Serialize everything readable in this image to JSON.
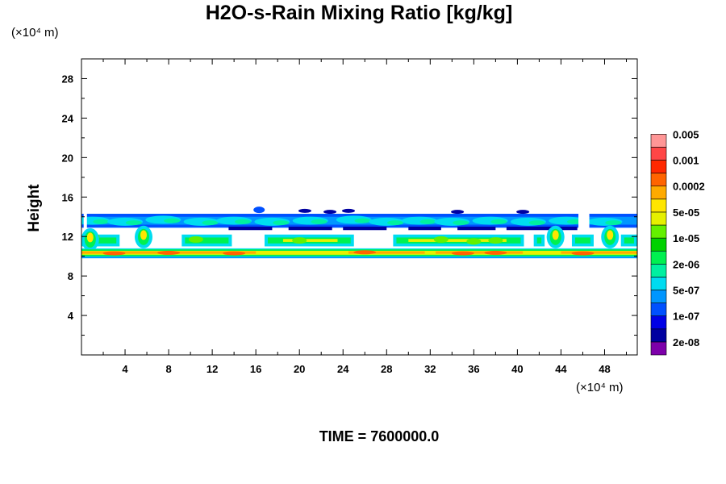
{
  "chart_data": {
    "type": "heatmap",
    "subtype": "filled-contour",
    "title": "H2O-s-Rain Mixing Ratio [kg/kg]",
    "xlabel": "",
    "ylabel": "Height",
    "x_unit": "(×10⁴ m)",
    "y_unit": "(×10⁴ m)",
    "xlim": [
      0,
      51
    ],
    "ylim": [
      0,
      30
    ],
    "x_ticks": [
      4,
      8,
      12,
      16,
      20,
      24,
      28,
      32,
      36,
      40,
      44,
      48
    ],
    "y_ticks": [
      4,
      8,
      12,
      16,
      20,
      24,
      28
    ],
    "time_label": "TIME = 7600000.0",
    "colorbar": {
      "colors": [
        "#7d00aa",
        "#0000a0",
        "#0000e6",
        "#0050ff",
        "#0096ff",
        "#00dcf0",
        "#00f0a0",
        "#00f050",
        "#00d200",
        "#64f000",
        "#e6f000",
        "#ffe600",
        "#ffaa00",
        "#ff6400",
        "#ff2800",
        "#ff4646",
        "#ff9696"
      ],
      "labels": [
        "2e-08",
        "1e-07",
        "5e-07",
        "2e-06",
        "1e-05",
        "5e-05",
        "0.0002",
        "0.001",
        "0.005"
      ]
    },
    "regions": [
      {
        "name": "anvil band",
        "x": [
          0,
          51
        ],
        "y": [
          12.8,
          14.4
        ],
        "level": "1e-07 to 5e-07"
      },
      {
        "name": "upper blob",
        "x": [
          16,
          17
        ],
        "y": [
          14.4,
          15.2
        ],
        "level": "1e-07"
      },
      {
        "name": "mid cloud layer",
        "x": [
          0,
          51
        ],
        "y": [
          11.0,
          12.3
        ],
        "level": "5e-07 to 5e-05"
      },
      {
        "name": "convective cell",
        "x": [
          5.0,
          6.4
        ],
        "y": [
          10.8,
          13.1
        ],
        "level": "up to 5e-05"
      },
      {
        "name": "convective cell",
        "x": [
          42.8,
          44.2
        ],
        "y": [
          10.8,
          13.1
        ],
        "level": "up to 5e-05"
      },
      {
        "name": "convective cell",
        "x": [
          47.9,
          49.1
        ],
        "y": [
          10.8,
          13.1
        ],
        "level": "up to 5e-05"
      },
      {
        "name": "melting layer",
        "x": [
          0,
          51
        ],
        "y": [
          9.8,
          10.8
        ],
        "level": "5e-06 to 0.0002"
      }
    ]
  }
}
